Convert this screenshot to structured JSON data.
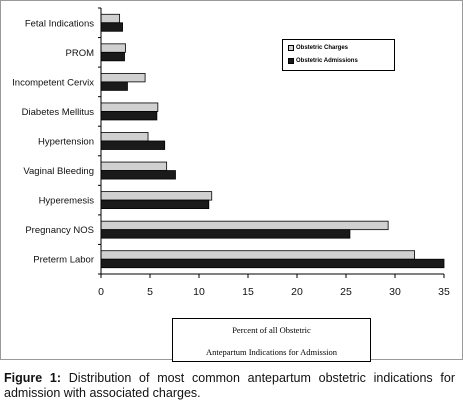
{
  "chart_data": {
    "type": "bar",
    "orientation": "horizontal",
    "categories": [
      "Fetal Indications",
      "PROM",
      "Incompetent Cervix",
      "Diabetes Mellitus",
      "Hypertension",
      "Vaginal Bleeding",
      "Hyperemesis",
      "Pregnancy NOS",
      "Preterm Labor"
    ],
    "series": [
      {
        "name": "Obstetric Charges",
        "values": [
          1.9,
          2.5,
          4.5,
          5.8,
          4.8,
          6.7,
          11.3,
          29.3,
          32.0
        ],
        "color": "#d0d0d0"
      },
      {
        "name": "Obstetric Admissions",
        "values": [
          2.2,
          2.4,
          2.7,
          5.7,
          6.5,
          7.6,
          11.0,
          25.4,
          35.0
        ],
        "color": "#1a1a1a"
      }
    ],
    "xlim": [
      0,
      35
    ],
    "xticks": [
      "0",
      "5",
      "10",
      "15",
      "20",
      "25",
      "30",
      "35"
    ],
    "xlabel": {
      "line1": "Percent of all Obstetric",
      "line2": "Antepartum Indications for Admission"
    },
    "ylabel": "",
    "grid": false,
    "legend_position": "top-right"
  },
  "caption": {
    "label": "Figure 1:",
    "text": "Distribution of most common antepartum obstetric indications for admission with associated charges."
  }
}
